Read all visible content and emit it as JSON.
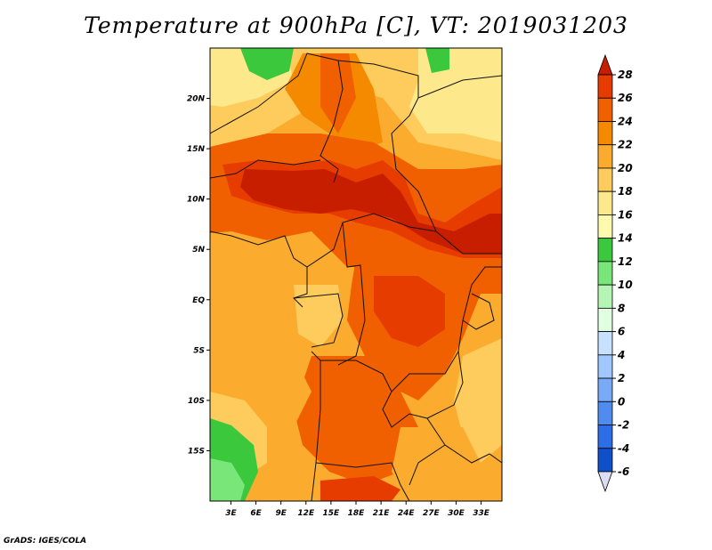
{
  "title": "Temperature at 900hPa [C], VT: 2019031203",
  "credit": "GrADS: IGES/COLA",
  "chart_data": {
    "type": "heatmap",
    "title": "Temperature at 900hPa [C], VT: 2019031203",
    "variable": "Temperature",
    "level": "900hPa",
    "units": "C",
    "valid_time": "2019031203",
    "x_ticks": [
      3,
      6,
      9,
      12,
      15,
      18,
      21,
      24,
      27,
      30,
      33
    ],
    "x_tick_labels": [
      "3E",
      "6E",
      "9E",
      "12E",
      "15E",
      "18E",
      "21E",
      "24E",
      "27E",
      "30E",
      "33E"
    ],
    "y_ticks": [
      20,
      15,
      10,
      5,
      0,
      -5,
      -10,
      -15
    ],
    "y_tick_labels": [
      "20N",
      "15N",
      "10N",
      "5N",
      "EQ",
      "5S",
      "10S",
      "15S"
    ],
    "xlim": [
      0.5,
      35.5
    ],
    "ylim": [
      -20,
      25
    ],
    "colorbar": {
      "labels": [
        "28",
        "26",
        "24",
        "22",
        "20",
        "18",
        "16",
        "14",
        "12",
        "10",
        "8",
        "6",
        "4",
        "2",
        "0",
        "-2",
        "-4",
        "-6"
      ],
      "colors": [
        "#c81e00",
        "#e63c00",
        "#f06000",
        "#f58a00",
        "#fbab2e",
        "#fdcc5c",
        "#fde98c",
        "#fdfaae",
        "#3cc83c",
        "#78e678",
        "#b4f5b4",
        "#e1ffe1",
        "#c8e1ff",
        "#a0c8ff",
        "#78aaf5",
        "#508cf0",
        "#2d6ee6",
        "#0f50c8",
        "#0a0a78",
        "#dcdcf5"
      ]
    }
  }
}
